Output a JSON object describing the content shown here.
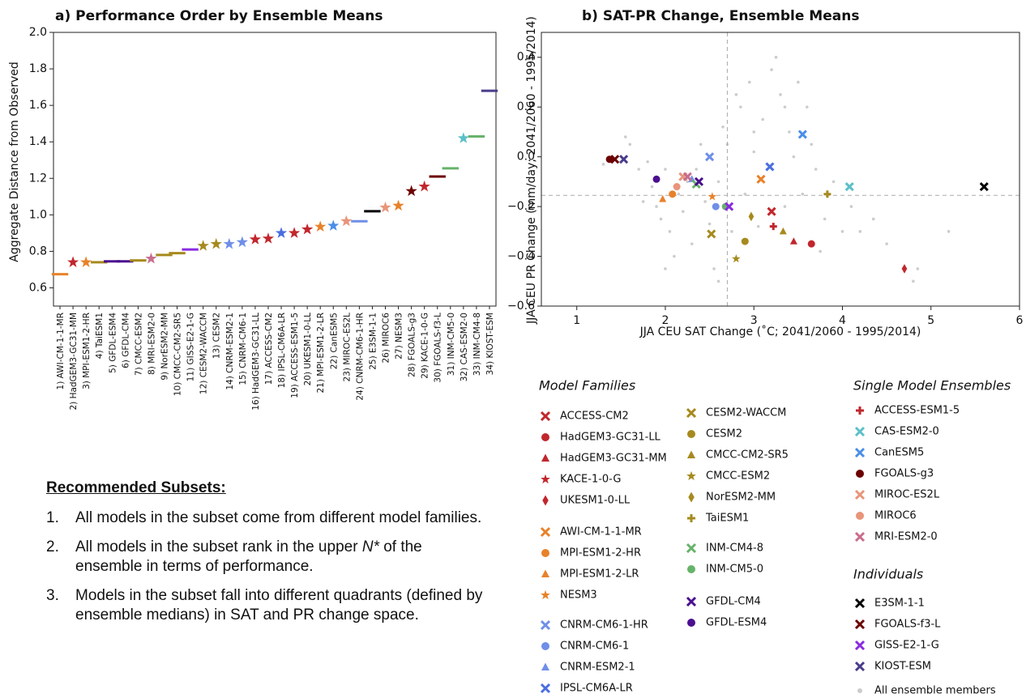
{
  "chart_data": [
    {
      "type": "dot",
      "title": "a) Performance Order by Ensemble Means",
      "y_label": "Aggregate Distance from Observed",
      "categories": [
        "1) AWI-CM-1-1-MR",
        "2) HadGEM3-GC31-MM",
        "3) MPI-ESM1-2-HR",
        "4) TaiESM1",
        "5) GFDL-ESM4",
        "6) GFDL-CM4",
        "7) CMCC-ESM2",
        "8) MRI-ESM2-0",
        "9) NorESM2-MM",
        "10) CMCC-CM2-SR5",
        "11) GISS-E2-1-G",
        "12) CESM2-WACCM",
        "13) CESM2",
        "14) CNRM-ESM2-1",
        "15) CNRM-CM6-1",
        "16) HadGEM3-GC31-LL",
        "17) ACCESS-CM2",
        "18) IPSL-CM6A-LR",
        "19) ACCESS-ESM1-5",
        "20) UKESM1-0-LL",
        "21) MPI-ESM1-2-LR",
        "22) CanESM5",
        "23) MIROC-ES2L",
        "24) CNRM-CM6-1-HR",
        "25) E3SM-1-1",
        "26) MIROC6",
        "27) NESM3",
        "28) FGOALS-g3",
        "29) KACE-1-0-G",
        "30) FGOALS-f3-L",
        "31) INM-CM5-0",
        "32) CAS-ESM2-0",
        "33) INM-CM4-8",
        "34) KIOST-ESM"
      ],
      "values": [
        0.675,
        0.74,
        0.74,
        0.74,
        0.745,
        0.745,
        0.75,
        0.76,
        0.78,
        0.79,
        0.81,
        0.83,
        0.84,
        0.84,
        0.85,
        0.865,
        0.87,
        0.9,
        0.9,
        0.92,
        0.935,
        0.94,
        0.965,
        0.965,
        1.02,
        1.04,
        1.05,
        1.13,
        1.155,
        1.21,
        1.255,
        1.42,
        1.43,
        1.68
      ],
      "markers": [
        "dash",
        "star",
        "star",
        "dash",
        "dash",
        "dash",
        "dash",
        "star",
        "dash",
        "dash",
        "dash",
        "star",
        "star",
        "star",
        "star",
        "star",
        "star",
        "star",
        "star",
        "star",
        "star",
        "star",
        "star",
        "dash",
        "dash",
        "star",
        "star",
        "star",
        "star",
        "dash",
        "dash",
        "star",
        "dash",
        "dash"
      ],
      "colors": [
        "#e8822a",
        "#c1272d",
        "#e8822a",
        "#a68a1e",
        "#4b0f8f",
        "#4b0f8f",
        "#a68a1e",
        "#c86d8d",
        "#a68a1e",
        "#a68a1e",
        "#8a2be2",
        "#a68a1e",
        "#a68a1e",
        "#6f8fe8",
        "#6f8fe8",
        "#c1272d",
        "#c1272d",
        "#4a6ee0",
        "#c1272d",
        "#c1272d",
        "#e8822a",
        "#4a8ee8",
        "#e8957a",
        "#6f8fe8",
        "#000000",
        "#e8957a",
        "#e8822a",
        "#6b0000",
        "#c1272d",
        "#6b0000",
        "#66b36a",
        "#5bc0c8",
        "#66b36a",
        "#483d8b"
      ],
      "ylim": [
        0.5,
        2.0
      ],
      "yticks": [
        0.6,
        0.8,
        {
          "value": 1.0,
          "label": "1.0"
        },
        1.2,
        1.4,
        1.6,
        1.8,
        {
          "value": 2.0,
          "label": "2.0"
        }
      ]
    },
    {
      "type": "scatter",
      "title": "b) SAT-PR Change, Ensemble Means",
      "x_label": "JJA CEU SAT Change (˚C; 2041/2060 - 1995/2014)",
      "y_label": "JJA CEU PR Change (mm/day; 2041/2060 - 1995/2014)",
      "xlim": [
        0.6,
        6
      ],
      "xticks": [
        1,
        2,
        3,
        4,
        5,
        6
      ],
      "ylim": [
        -0.6,
        0.5
      ],
      "yticks": [
        {
          "value": -0.6,
          "label": "−0.6"
        },
        {
          "value": -0.4,
          "label": "−0.4"
        },
        {
          "value": -0.2,
          "label": "−0.2"
        },
        {
          "value": 0,
          "label": "0.0"
        },
        0.2,
        0.4
      ],
      "medians": {
        "x": 2.7,
        "y": -0.155
      },
      "background": {
        "name": "All ensemble members",
        "color": "#cccccc",
        "x": [
          1.4,
          1.6,
          1.55,
          1.7,
          1.8,
          1.85,
          1.9,
          1.95,
          2.0,
          2.05,
          2.1,
          2.15,
          2.2,
          2.25,
          2.3,
          2.35,
          2.4,
          2.45,
          2.5,
          2.55,
          2.6,
          2.65,
          2.7,
          2.75,
          2.8,
          2.85,
          2.9,
          2.95,
          3.0,
          3.05,
          3.1,
          3.15,
          3.2,
          3.25,
          3.3,
          3.35,
          3.4,
          3.45,
          3.5,
          3.55,
          3.6,
          3.65,
          3.7,
          3.75,
          3.8,
          3.9,
          4.0,
          4.1,
          4.2,
          4.35,
          4.5,
          4.8,
          4.85,
          5.2,
          1.3,
          2.0,
          1.75,
          2.6,
          3.0,
          3.35
        ],
        "y": [
          0.0,
          0.05,
          0.08,
          -0.05,
          -0.02,
          -0.12,
          -0.2,
          -0.25,
          -0.05,
          -0.3,
          -0.4,
          -0.15,
          -0.22,
          -0.1,
          -0.35,
          -0.05,
          0.05,
          -0.18,
          -0.27,
          -0.45,
          -0.1,
          0.12,
          0.05,
          -0.3,
          0.25,
          0.2,
          -0.15,
          0.3,
          0.1,
          -0.28,
          0.15,
          -0.05,
          0.35,
          0.4,
          0.25,
          -0.2,
          0.1,
          0.0,
          0.3,
          -0.15,
          0.2,
          0.05,
          -0.05,
          -0.38,
          -0.25,
          -0.1,
          -0.3,
          -0.2,
          -0.3,
          -0.25,
          -0.35,
          -0.5,
          -0.45,
          -0.3,
          -0.03,
          -0.45,
          -0.18,
          -0.5,
          0.02,
          0.2
        ]
      },
      "legend": {
        "groups": [
          {
            "title": "Model Families",
            "entries": [
              {
                "name": "ACCESS-CM2",
                "marker": "x",
                "color": "#c1272d",
                "x": 3.2,
                "y": -0.22
              },
              {
                "name": "HadGEM3-GC31-LL",
                "marker": "circle",
                "color": "#c1272d",
                "x": 3.65,
                "y": -0.35
              },
              {
                "name": "HadGEM3-GC31-MM",
                "marker": "triangle",
                "color": "#c1272d",
                "x": 3.45,
                "y": -0.34
              },
              {
                "name": "KACE-1-0-G",
                "marker": "star",
                "color": "#c1272d"
              },
              {
                "name": "UKESM1-0-LL",
                "marker": "diamond",
                "color": "#c1272d",
                "x": 4.7,
                "y": -0.45
              }
            ]
          },
          {
            "entries": [
              {
                "name": "AWI-CM-1-1-MR",
                "marker": "x",
                "color": "#e8822a",
                "x": 3.08,
                "y": -0.09
              },
              {
                "name": "MPI-ESM1-2-HR",
                "marker": "circle",
                "color": "#e8822a",
                "x": 2.08,
                "y": -0.15
              },
              {
                "name": "MPI-ESM1-2-LR",
                "marker": "triangle",
                "color": "#e8822a",
                "x": 1.97,
                "y": -0.17
              },
              {
                "name": "NESM3",
                "marker": "star",
                "color": "#e8822a",
                "x": 2.53,
                "y": -0.16
              }
            ]
          },
          {
            "entries": [
              {
                "name": "CNRM-CM6-1-HR",
                "marker": "x",
                "color": "#6f8fe8",
                "x": 2.5,
                "y": 0.0
              },
              {
                "name": "CNRM-CM6-1",
                "marker": "circle",
                "color": "#6f8fe8",
                "x": 2.57,
                "y": -0.2
              },
              {
                "name": "CNRM-ESM2-1",
                "marker": "triangle",
                "color": "#6f8fe8",
                "x": 2.3,
                "y": -0.09
              },
              {
                "name": "IPSL-CM6A-LR",
                "marker": "x",
                "color": "#4a6ee0",
                "x": 3.18,
                "y": -0.04
              }
            ]
          },
          {
            "entries": [
              {
                "name": "CESM2-WACCM",
                "marker": "x",
                "color": "#a68a1e",
                "x": 2.52,
                "y": -0.31
              },
              {
                "name": "CESM2",
                "marker": "circle",
                "color": "#a68a1e",
                "x": 2.9,
                "y": -0.34
              },
              {
                "name": "CMCC-CM2-SR5",
                "marker": "triangle",
                "color": "#a68a1e",
                "x": 3.33,
                "y": -0.3
              },
              {
                "name": "CMCC-ESM2",
                "marker": "star",
                "color": "#a68a1e",
                "x": 2.8,
                "y": -0.41
              },
              {
                "name": "NorESM2-MM",
                "marker": "diamond",
                "color": "#a68a1e",
                "x": 2.97,
                "y": -0.24
              },
              {
                "name": "TaiESM1",
                "marker": "plus",
                "color": "#a68a1e",
                "x": 3.83,
                "y": -0.15
              }
            ]
          },
          {
            "entries": [
              {
                "name": "INM-CM4-8",
                "marker": "x",
                "color": "#66b36a",
                "x": 2.35,
                "y": -0.11
              },
              {
                "name": "INM-CM5-0",
                "marker": "circle",
                "color": "#66b36a",
                "x": 2.68,
                "y": -0.2
              }
            ]
          },
          {
            "entries": [
              {
                "name": "GFDL-CM4",
                "marker": "x",
                "color": "#4b0f8f",
                "x": 2.38,
                "y": -0.1
              },
              {
                "name": "GFDL-ESM4",
                "marker": "circle",
                "color": "#4b0f8f",
                "x": 1.9,
                "y": -0.09
              }
            ]
          },
          {
            "title": "Single Model Ensembles",
            "entries": [
              {
                "name": "ACCESS-ESM1-5",
                "marker": "plus",
                "color": "#c1272d",
                "x": 3.22,
                "y": -0.28
              },
              {
                "name": "CAS-ESM2-0",
                "marker": "x",
                "color": "#5bc0c8",
                "x": 4.08,
                "y": -0.12
              },
              {
                "name": "CanESM5",
                "marker": "x",
                "color": "#4a8ee8",
                "x": 3.55,
                "y": 0.09
              },
              {
                "name": "FGOALS-g3",
                "marker": "circle",
                "color": "#6b0000",
                "x": 1.37,
                "y": -0.01
              },
              {
                "name": "MIROC-ES2L",
                "marker": "x",
                "color": "#e8957a",
                "x": 2.2,
                "y": -0.08
              },
              {
                "name": "MIROC6",
                "marker": "circle",
                "color": "#e8957a",
                "x": 2.13,
                "y": -0.12
              },
              {
                "name": "MRI-ESM2-0",
                "marker": "x",
                "color": "#c86d8d",
                "x": 2.25,
                "y": -0.08
              }
            ]
          },
          {
            "title": "Individuals",
            "entries": [
              {
                "name": "E3SM-1-1",
                "marker": "x",
                "color": "#000000",
                "x": 5.6,
                "y": -0.12
              },
              {
                "name": "FGOALS-f3-L",
                "marker": "x",
                "color": "#6b0000",
                "x": 1.43,
                "y": -0.01
              },
              {
                "name": "GISS-E2-1-G",
                "marker": "x",
                "color": "#8a2be2",
                "x": 2.72,
                "y": -0.2
              },
              {
                "name": "KIOST-ESM",
                "marker": "x",
                "color": "#483d8b",
                "x": 1.53,
                "y": -0.01
              }
            ]
          }
        ]
      }
    }
  ],
  "notes": {
    "title": "Recommended Subsets:",
    "items": [
      {
        "number": "1.",
        "parts": [
          "All models in the subset come from different model families."
        ]
      },
      {
        "number": "2.",
        "parts": [
          "All models in the subset rank in the upper ",
          "N*",
          " of the ensemble in terms of performance."
        ]
      },
      {
        "number": "3.",
        "parts": [
          "Models in the subset fall into different quadrants (defined by ensemble medians) in SAT and PR change space."
        ]
      }
    ]
  }
}
